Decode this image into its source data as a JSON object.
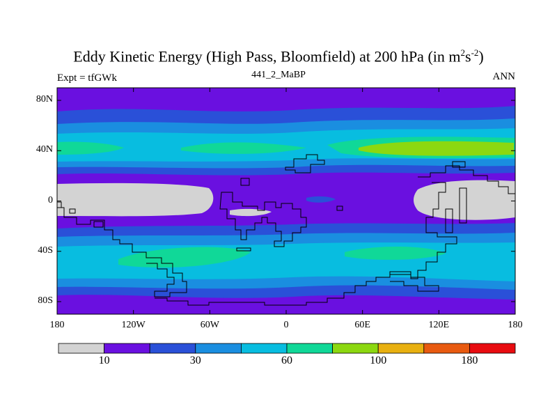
{
  "title": {
    "main": "Eddy Kinetic Energy (High Pass, Bloomfield) at 200 hPa (in m",
    "sup1": "2",
    "mid": "s",
    "sup2": "-2",
    "end": ")"
  },
  "subtitle": "441_2_MaBP",
  "expt_label": "Expt = tfGWk",
  "season_label": "ANN",
  "axes": {
    "y_ticks": [
      "80N",
      "40N",
      "0",
      "40S",
      "80S"
    ],
    "x_ticks": [
      "180",
      "120W",
      "60W",
      "0",
      "60E",
      "120E",
      "180"
    ]
  },
  "colorbar": {
    "colors": [
      "#d3d3d3",
      "#6a10e0",
      "#2a50d8",
      "#1a8ee0",
      "#08bde0",
      "#10d898",
      "#8cd810",
      "#e8b010",
      "#e85a10",
      "#e80c10"
    ],
    "labels": [
      "10",
      "30",
      "60",
      "100",
      "180"
    ]
  },
  "map_colors": {
    "gray": "#d3d3d3",
    "purple": "#6a10e0",
    "blue": "#2a50d8",
    "mid_blue": "#1a8ee0",
    "cyan": "#08bde0",
    "green": "#10d898",
    "lime": "#8cd810"
  }
}
